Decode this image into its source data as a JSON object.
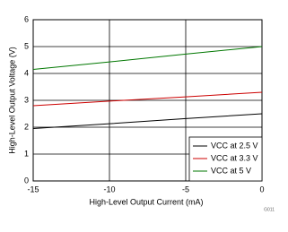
{
  "chart_data": {
    "type": "line",
    "xlabel": "High-Level Output Current (mA)",
    "ylabel": "High-Level Output Voltage (V)",
    "x": [
      -15,
      -10,
      -5,
      0
    ],
    "series": [
      {
        "name": "VCC at 2.5 V",
        "color": "#000000",
        "values": [
          1.95,
          2.13,
          2.32,
          2.5
        ]
      },
      {
        "name": "VCC at 3.3 V",
        "color": "#cc0000",
        "values": [
          2.8,
          2.97,
          3.13,
          3.3
        ]
      },
      {
        "name": "VCC at 5 V",
        "color": "#007700",
        "values": [
          4.15,
          4.43,
          4.72,
          5.0
        ]
      }
    ],
    "xlim": [
      -15,
      0
    ],
    "xticks": [
      -15,
      -10,
      -5,
      0
    ],
    "ylim": [
      0,
      6
    ],
    "yticks": [
      0,
      1,
      2,
      3,
      4,
      5,
      6
    ],
    "grid": true,
    "legend": "lower right",
    "annotation": "G011"
  }
}
